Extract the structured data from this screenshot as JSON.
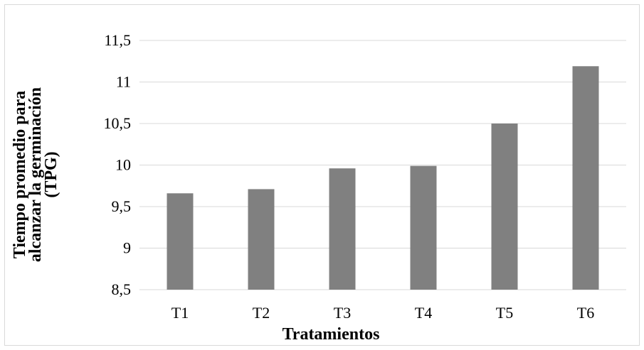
{
  "chart_data": {
    "type": "bar",
    "title": "",
    "xlabel": "Tratamientos",
    "ylabel_lines": [
      "Tiempo promedio para",
      "alcanzar la germinación",
      "(TPG)"
    ],
    "categories": [
      "T1",
      "T2",
      "T3",
      "T4",
      "T5",
      "T6"
    ],
    "values": [
      9.66,
      9.71,
      9.96,
      9.99,
      10.5,
      11.19
    ],
    "ylim": [
      8.5,
      11.5
    ],
    "yticks": [
      8.5,
      9,
      9.5,
      10,
      10.5,
      11,
      11.5
    ],
    "ytick_labels": [
      "8,5",
      "9",
      "9,5",
      "10",
      "10,5",
      "11",
      "11,5"
    ],
    "grid": true,
    "legend": "none",
    "colors": {
      "bar": "#808080",
      "grid": "#d9d9d9",
      "axis": "#d9d9d9"
    }
  }
}
